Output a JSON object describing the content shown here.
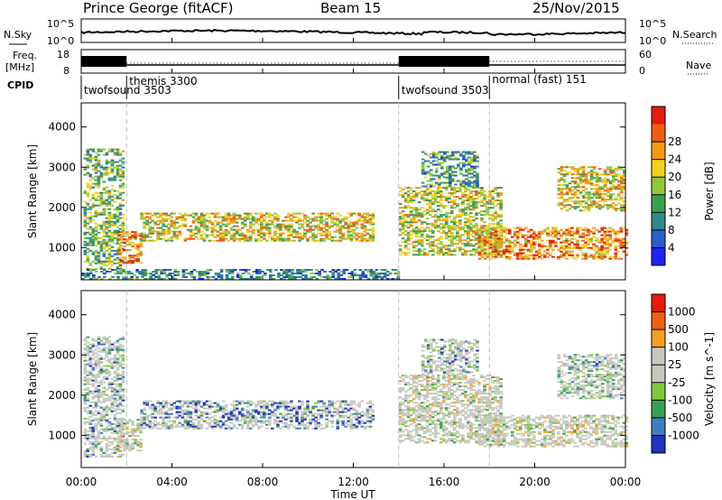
{
  "header": {
    "station": "Prince George (fitACF)",
    "beam": "Beam 15",
    "date": "25/Nov/2015"
  },
  "sky_panel": {
    "left_label": "N.Sky",
    "right_label": "N.Search",
    "left_ticks": [
      "10^5",
      "10^0"
    ],
    "right_ticks": [
      "10^5",
      "10^0"
    ]
  },
  "freq_panel": {
    "left_label_line1": "Freq.",
    "left_label_line2": "[MHz]",
    "right_label": "Nave",
    "left_ticks": [
      "18",
      "8"
    ],
    "right_ticks": [
      "60",
      "0"
    ]
  },
  "cpid": {
    "label": "CPID",
    "modes": [
      {
        "name": "twofsound 3503",
        "start_hour": 0
      },
      {
        "name": "themis 3300",
        "start_hour": 2
      },
      {
        "name": "twofsound 3503",
        "start_hour": 14
      },
      {
        "name": "normal (fast) 151",
        "start_hour": 18
      }
    ]
  },
  "x_axis": {
    "title": "Time UT",
    "ticks": [
      "00:00",
      "04:00",
      "08:00",
      "12:00",
      "16:00",
      "20:00",
      "00:00"
    ]
  },
  "chart_data": [
    {
      "type": "heatmap",
      "panel": "power",
      "ylabel": "Slant Range [km]",
      "yticks": [
        "1000",
        "2000",
        "3000",
        "4000"
      ],
      "ylim": [
        200,
        4600
      ],
      "xlim_hours": [
        0,
        24
      ],
      "colorbar_label": "Power [dB]",
      "colorbar_ticks": [
        "4",
        "8",
        "12",
        "16",
        "20",
        "24",
        "28"
      ],
      "colorbar_colors": [
        "#2020ff",
        "#2a5fc8",
        "#2e8a8a",
        "#3aa050",
        "#8fc93a",
        "#f2d21a",
        "#f59a10",
        "#f25c10",
        "#e81a0a"
      ],
      "colorbar_range": [
        0,
        30
      ],
      "echo_regions": [
        {
          "t0": 0.1,
          "t1": 1.9,
          "r0": 450,
          "r1": 3450,
          "level": 0.45
        },
        {
          "t0": 1.6,
          "t1": 2.6,
          "r0": 600,
          "r1": 1400,
          "level": 0.75
        },
        {
          "t0": 2.6,
          "t1": 12.8,
          "r0": 1150,
          "r1": 1850,
          "level": 0.6
        },
        {
          "t0": 0.0,
          "t1": 14.0,
          "r0": 200,
          "r1": 450,
          "level": 0.3
        },
        {
          "t0": 14.0,
          "t1": 18.5,
          "r0": 800,
          "r1": 2500,
          "level": 0.55
        },
        {
          "t0": 15.0,
          "t1": 17.5,
          "r0": 2500,
          "r1": 3400,
          "level": 0.35
        },
        {
          "t0": 17.5,
          "t1": 24.0,
          "r0": 700,
          "r1": 1500,
          "level": 0.75
        },
        {
          "t0": 21.0,
          "t1": 24.0,
          "r0": 1900,
          "r1": 3000,
          "level": 0.6
        }
      ]
    },
    {
      "type": "heatmap",
      "panel": "velocity",
      "ylabel": "Slant Range [km]",
      "yticks": [
        "1000",
        "2000",
        "3000",
        "4000"
      ],
      "ylim": [
        200,
        4600
      ],
      "xlim_hours": [
        0,
        24
      ],
      "colorbar_label": "Velocity [m s^-1]",
      "colorbar_ticks": [
        "1000",
        "500",
        "100",
        "25",
        "-25",
        "-100",
        "-500",
        "-1000"
      ],
      "colorbar_colors": [
        "#2030c0",
        "#3f7fbf",
        "#3aa050",
        "#80c840",
        "#c8c8c0",
        "#c8c8c0",
        "#f5a020",
        "#f06010",
        "#e81a0a"
      ],
      "echo_regions": [
        {
          "t0": 0.1,
          "t1": 1.9,
          "r0": 450,
          "r1": 3450,
          "level": 0.3
        },
        {
          "t0": 1.6,
          "t1": 2.6,
          "r0": 600,
          "r1": 1400,
          "level": 0.5
        },
        {
          "t0": 2.6,
          "t1": 12.8,
          "r0": 1150,
          "r1": 1850,
          "level": 0.15
        },
        {
          "t0": 14.0,
          "t1": 18.5,
          "r0": 800,
          "r1": 2500,
          "level": 0.5
        },
        {
          "t0": 15.0,
          "t1": 17.5,
          "r0": 2500,
          "r1": 3400,
          "level": 0.3
        },
        {
          "t0": 17.5,
          "t1": 24.0,
          "r0": 700,
          "r1": 1500,
          "level": 0.5
        },
        {
          "t0": 21.0,
          "t1": 24.0,
          "r0": 1900,
          "r1": 3000,
          "level": 0.35
        }
      ]
    }
  ]
}
